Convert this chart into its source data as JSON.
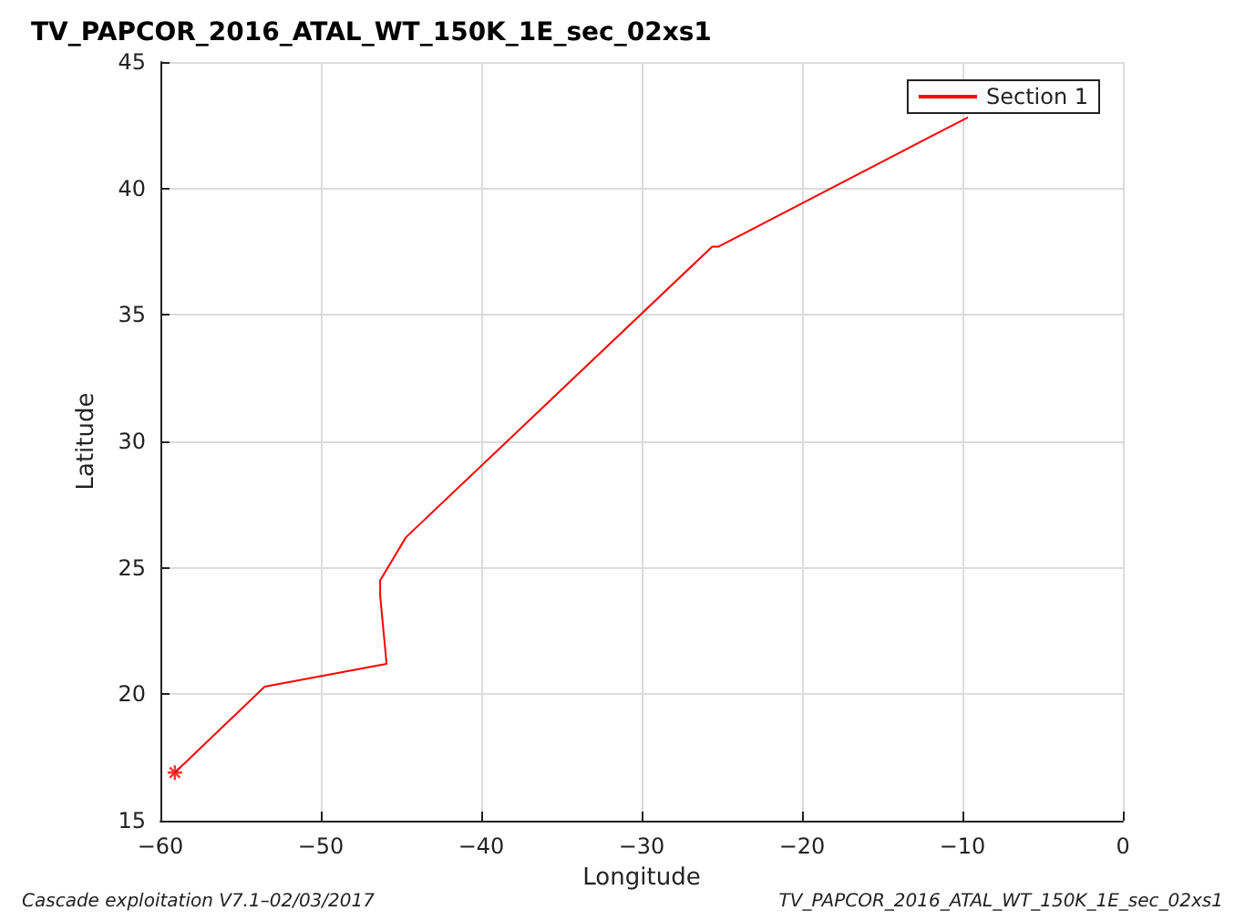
{
  "chart_data": {
    "type": "line",
    "title": "TV_PAPCOR_2016_ATAL_WT_150K_1E_sec_02xs1",
    "xlabel": "Longitude",
    "ylabel": "Latitude",
    "annotations": [
      "Cascade exploitation V7.1–02/03/2017",
      "TV_PAPCOR_2016_ATAL_WT_150K_1E_sec_02xs1"
    ],
    "series": [
      {
        "name": "Section 1",
        "color": "#ff0000",
        "x": [
          -59.1,
          -53.5,
          -45.9,
          -46.3,
          -46.3,
          -44.7,
          -25.6,
          -25.2,
          -9.7
        ],
        "values": [
          16.9,
          20.3,
          21.2,
          23.9,
          24.5,
          26.2,
          37.7,
          37.7,
          42.8
        ]
      },
      {
        "type": "scatter",
        "marker": "cross",
        "color": "#ff0000",
        "x": [
          -59.1
        ],
        "values": [
          16.9
        ]
      }
    ],
    "xlim": [
      -60,
      0
    ],
    "xticks": [
      -60,
      -50,
      -40,
      -30,
      -20,
      -10,
      0
    ],
    "ylim": [
      15,
      45
    ],
    "yticks": [
      15,
      20,
      25,
      30,
      35,
      40,
      45
    ],
    "grid": true,
    "legend": "top right",
    "marker": "none",
    "line_style": "solid"
  }
}
